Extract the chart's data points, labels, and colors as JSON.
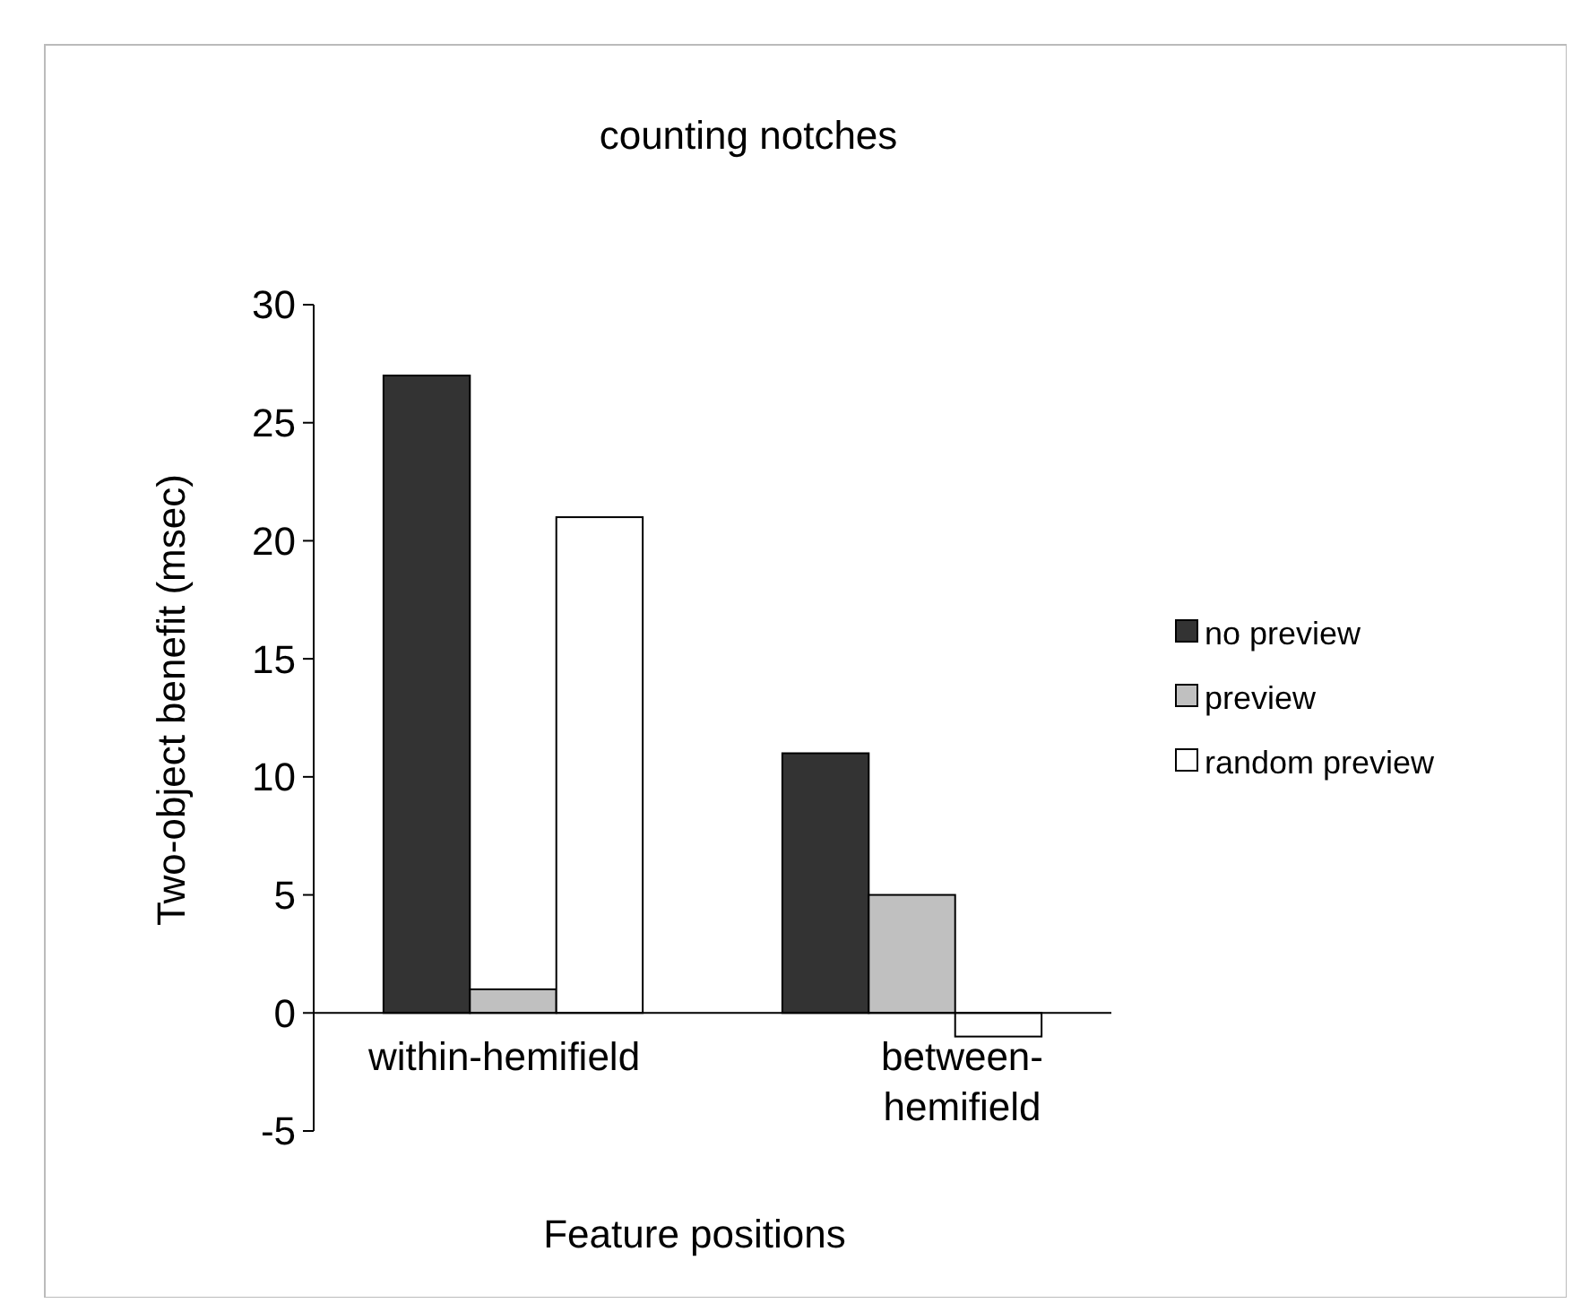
{
  "chart_data": {
    "type": "bar",
    "title": "counting notches",
    "xlabel": "Feature positions",
    "ylabel": "Two-object benefit (msec)",
    "categories": [
      "within-hemifield",
      "between-hemifield"
    ],
    "series": [
      {
        "name": "no preview",
        "color": "#333333",
        "values": [
          27,
          11
        ]
      },
      {
        "name": "preview",
        "color": "#c0c0c0",
        "values": [
          1,
          5
        ]
      },
      {
        "name": "random preview",
        "color": "#ffffff",
        "values": [
          21,
          -1
        ]
      }
    ],
    "ylim": [
      -5,
      30
    ],
    "yticks": [
      -5,
      0,
      5,
      10,
      15,
      20,
      25,
      30
    ],
    "grid": false,
    "legend": "right"
  }
}
